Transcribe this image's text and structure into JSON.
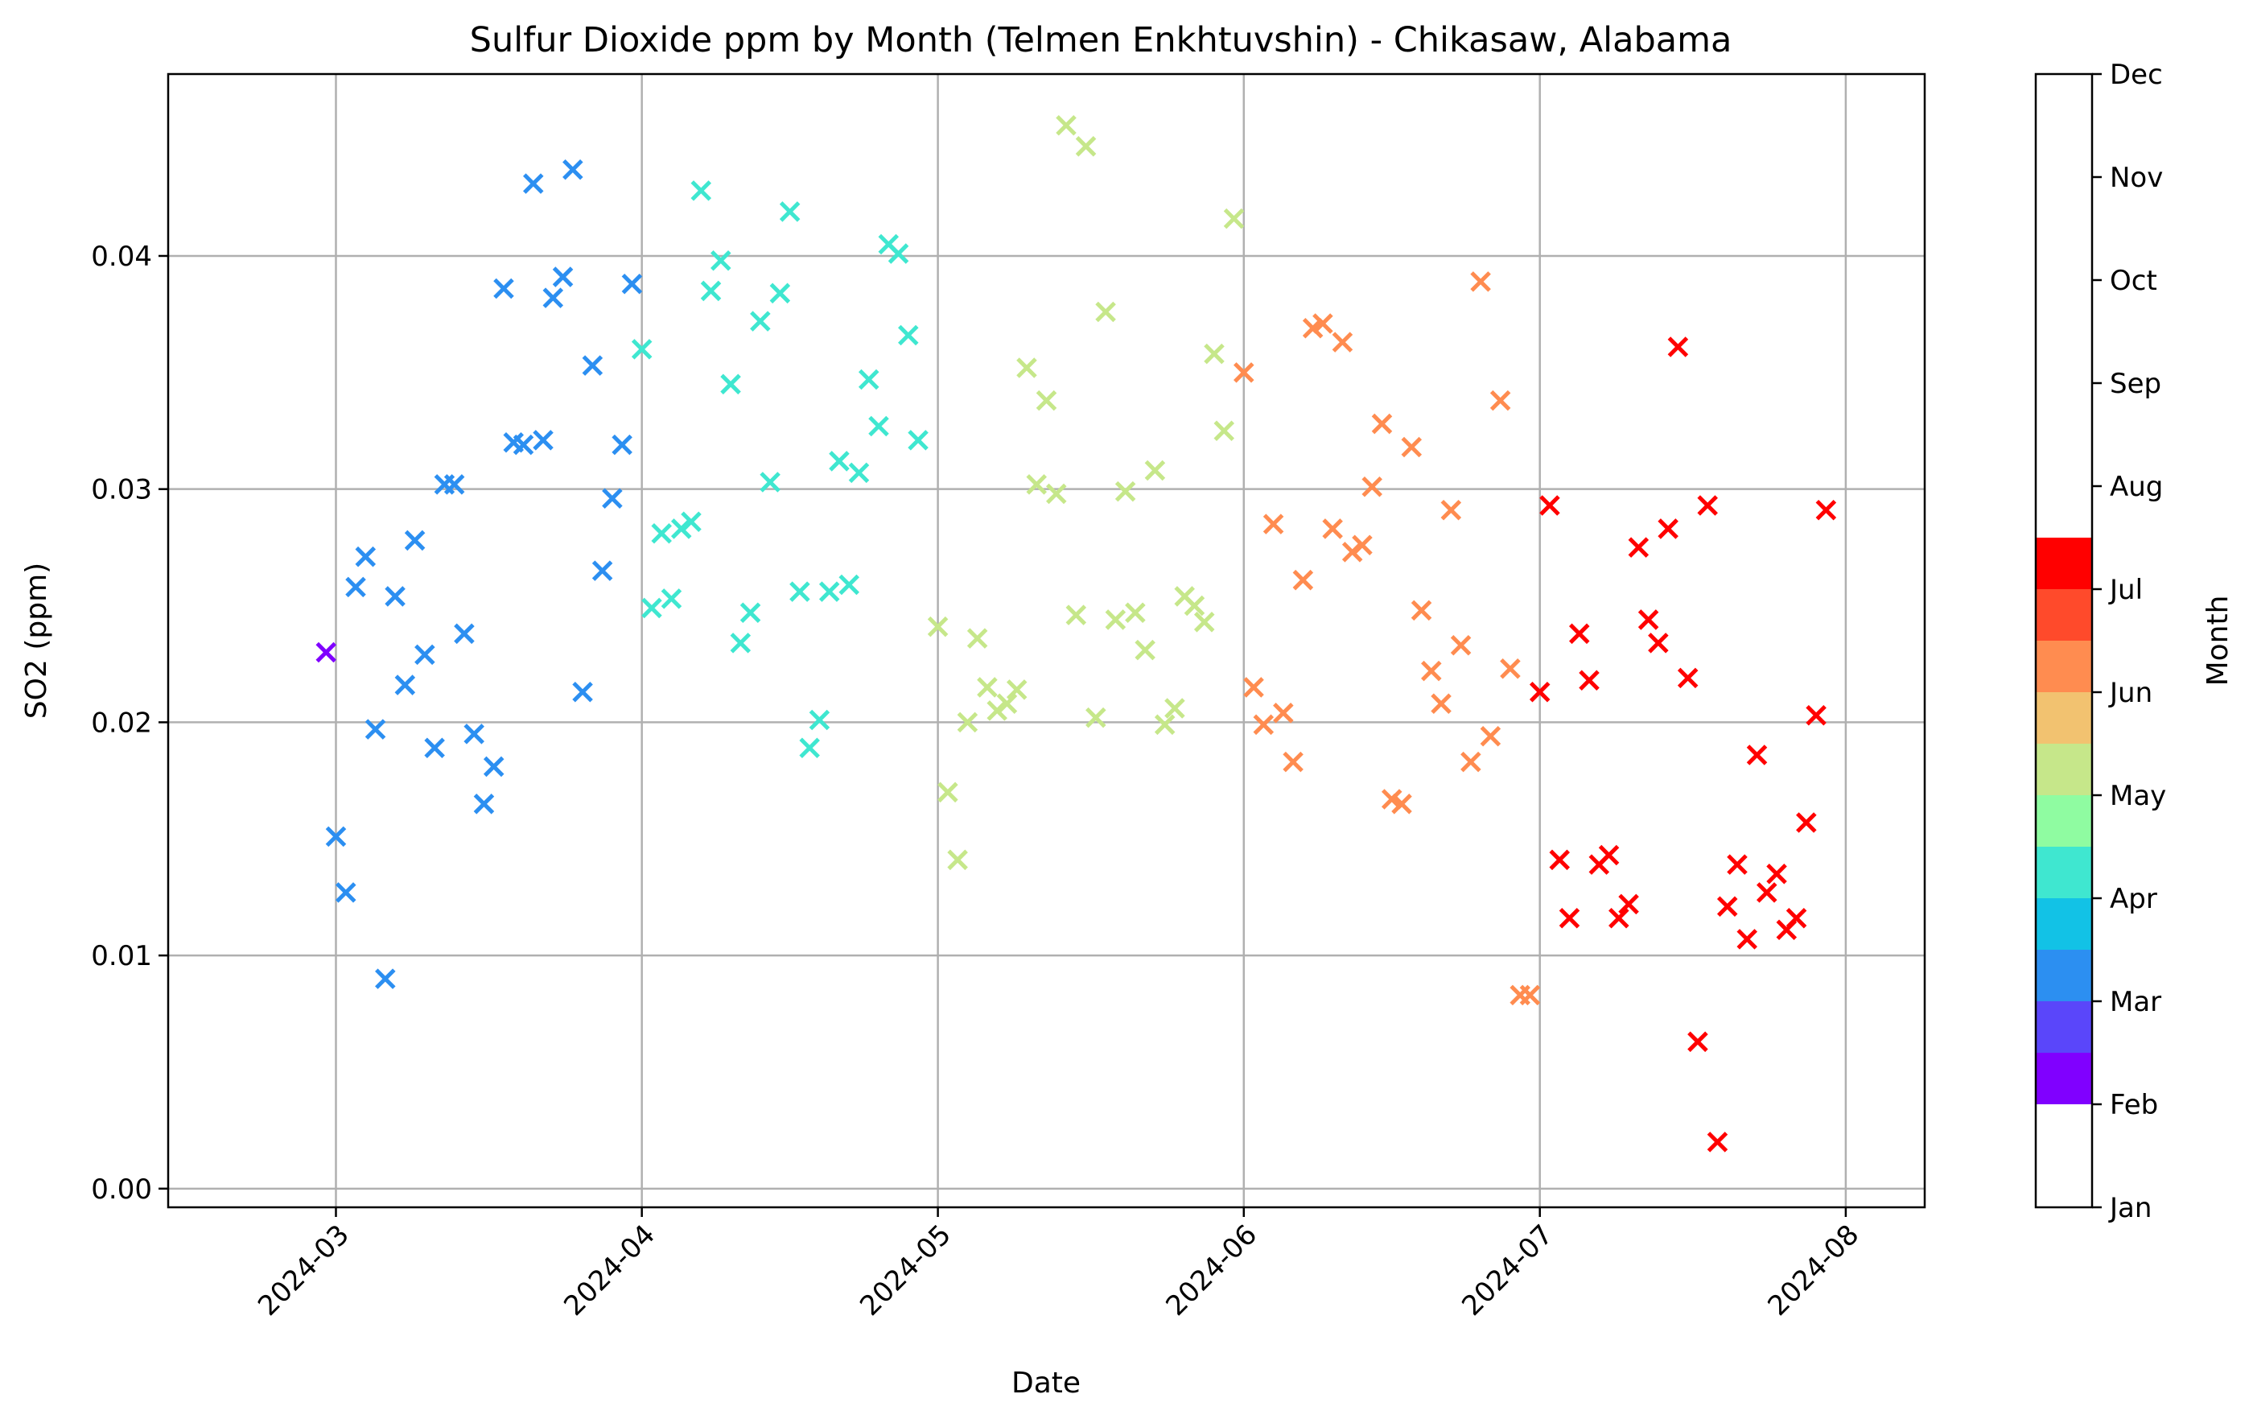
{
  "chart_data": {
    "type": "scatter",
    "title": "Sulfur Dioxide ppm by Month (Telmen Enkhtuvshin) - Chikasaw, Alabama",
    "xlabel": "Date",
    "ylabel": "SO2 (ppm)",
    "marker": "x",
    "xlim": [
      "2024-02-13",
      "2024-08-09"
    ],
    "ylim": [
      -0.0008,
      0.0478
    ],
    "x_ticks": [
      "2024-03-01",
      "2024-04-01",
      "2024-05-01",
      "2024-06-01",
      "2024-07-01",
      "2024-08-01"
    ],
    "x_tick_labels": [
      "2024-03",
      "2024-04",
      "2024-05",
      "2024-06",
      "2024-07",
      "2024-08"
    ],
    "y_ticks": [
      0.0,
      0.01,
      0.02,
      0.03,
      0.04
    ],
    "y_tick_labels": [
      "0.00",
      "0.01",
      "0.02",
      "0.03",
      "0.04"
    ],
    "grid": true,
    "colorbar": {
      "label": "Month",
      "range": [
        1,
        12
      ],
      "tick_labels": [
        "Jan",
        "Feb",
        "Mar",
        "Apr",
        "May",
        "Jun",
        "Jul",
        "Aug",
        "Sep",
        "Oct",
        "Nov",
        "Dec"
      ],
      "bands": [
        {
          "from": 2.0,
          "to": 2.5,
          "color": "#8000ff"
        },
        {
          "from": 2.5,
          "to": 3.0,
          "color": "#5a46fa"
        },
        {
          "from": 3.0,
          "to": 3.5,
          "color": "#2c8ff1"
        },
        {
          "from": 3.5,
          "to": 4.0,
          "color": "#12c2e6"
        },
        {
          "from": 4.0,
          "to": 4.5,
          "color": "#3fe7d0"
        },
        {
          "from": 4.5,
          "to": 5.0,
          "color": "#8ffca1"
        },
        {
          "from": 5.0,
          "to": 5.5,
          "color": "#c6e78a"
        },
        {
          "from": 5.5,
          "to": 6.0,
          "color": "#f2c270"
        },
        {
          "from": 6.0,
          "to": 6.5,
          "color": "#ff8c50"
        },
        {
          "from": 6.5,
          "to": 7.0,
          "color": "#ff4a2b"
        },
        {
          "from": 7.0,
          "to": 7.5,
          "color": "#ff0000"
        }
      ]
    },
    "series": [
      {
        "month": "Feb",
        "color": "#8000ff",
        "points": [
          [
            "2024-02-29",
            0.023
          ]
        ]
      },
      {
        "month": "Mar",
        "color": "#2c8ff1",
        "points": [
          [
            "2024-03-01",
            0.0151
          ],
          [
            "2024-03-02",
            0.0127
          ],
          [
            "2024-03-03",
            0.0258
          ],
          [
            "2024-03-04",
            0.0271
          ],
          [
            "2024-03-05",
            0.0197
          ],
          [
            "2024-03-06",
            0.009
          ],
          [
            "2024-03-07",
            0.0254
          ],
          [
            "2024-03-08",
            0.0216
          ],
          [
            "2024-03-09",
            0.0278
          ],
          [
            "2024-03-10",
            0.0229
          ],
          [
            "2024-03-11",
            0.0189
          ],
          [
            "2024-03-12",
            0.0302
          ],
          [
            "2024-03-13",
            0.0302
          ],
          [
            "2024-03-14",
            0.0238
          ],
          [
            "2024-03-15",
            0.0195
          ],
          [
            "2024-03-16",
            0.0165
          ],
          [
            "2024-03-17",
            0.0181
          ],
          [
            "2024-03-18",
            0.0386
          ],
          [
            "2024-03-19",
            0.032
          ],
          [
            "2024-03-20",
            0.0319
          ],
          [
            "2024-03-21",
            0.0431
          ],
          [
            "2024-03-22",
            0.0321
          ],
          [
            "2024-03-23",
            0.0382
          ],
          [
            "2024-03-24",
            0.0391
          ],
          [
            "2024-03-25",
            0.0437
          ],
          [
            "2024-03-26",
            0.0213
          ],
          [
            "2024-03-27",
            0.0353
          ],
          [
            "2024-03-28",
            0.0265
          ],
          [
            "2024-03-29",
            0.0296
          ],
          [
            "2024-03-30",
            0.0319
          ],
          [
            "2024-03-31",
            0.0388
          ]
        ]
      },
      {
        "month": "Apr",
        "color": "#3fe7d0",
        "points": [
          [
            "2024-04-01",
            0.036
          ],
          [
            "2024-04-02",
            0.0249
          ],
          [
            "2024-04-03",
            0.0281
          ],
          [
            "2024-04-04",
            0.0253
          ],
          [
            "2024-04-05",
            0.0283
          ],
          [
            "2024-04-06",
            0.0286
          ],
          [
            "2024-04-07",
            0.0428
          ],
          [
            "2024-04-08",
            0.0385
          ],
          [
            "2024-04-09",
            0.0398
          ],
          [
            "2024-04-10",
            0.0345
          ],
          [
            "2024-04-11",
            0.0234
          ],
          [
            "2024-04-12",
            0.0247
          ],
          [
            "2024-04-13",
            0.0372
          ],
          [
            "2024-04-14",
            0.0303
          ],
          [
            "2024-04-15",
            0.0384
          ],
          [
            "2024-04-16",
            0.0419
          ],
          [
            "2024-04-17",
            0.0256
          ],
          [
            "2024-04-18",
            0.0189
          ],
          [
            "2024-04-19",
            0.0201
          ],
          [
            "2024-04-20",
            0.0256
          ],
          [
            "2024-04-21",
            0.0312
          ],
          [
            "2024-04-22",
            0.0259
          ],
          [
            "2024-04-23",
            0.0307
          ],
          [
            "2024-04-24",
            0.0347
          ],
          [
            "2024-04-25",
            0.0327
          ],
          [
            "2024-04-26",
            0.0405
          ],
          [
            "2024-04-27",
            0.0401
          ],
          [
            "2024-04-28",
            0.0366
          ],
          [
            "2024-04-29",
            0.0321
          ]
        ]
      },
      {
        "month": "May",
        "color": "#c6e78a",
        "points": [
          [
            "2024-05-01",
            0.0241
          ],
          [
            "2024-05-02",
            0.017
          ],
          [
            "2024-05-03",
            0.0141
          ],
          [
            "2024-05-04",
            0.02
          ],
          [
            "2024-05-05",
            0.0236
          ],
          [
            "2024-05-06",
            0.0215
          ],
          [
            "2024-05-07",
            0.0205
          ],
          [
            "2024-05-08",
            0.0208
          ],
          [
            "2024-05-09",
            0.0214
          ],
          [
            "2024-05-10",
            0.0352
          ],
          [
            "2024-05-11",
            0.0302
          ],
          [
            "2024-05-12",
            0.0338
          ],
          [
            "2024-05-13",
            0.0298
          ],
          [
            "2024-05-14",
            0.0456
          ],
          [
            "2024-05-15",
            0.0246
          ],
          [
            "2024-05-16",
            0.0447
          ],
          [
            "2024-05-17",
            0.0202
          ],
          [
            "2024-05-18",
            0.0376
          ],
          [
            "2024-05-19",
            0.0244
          ],
          [
            "2024-05-20",
            0.0299
          ],
          [
            "2024-05-21",
            0.0247
          ],
          [
            "2024-05-22",
            0.0231
          ],
          [
            "2024-05-23",
            0.0308
          ],
          [
            "2024-05-24",
            0.0199
          ],
          [
            "2024-05-25",
            0.0206
          ],
          [
            "2024-05-26",
            0.0254
          ],
          [
            "2024-05-27",
            0.025
          ],
          [
            "2024-05-28",
            0.0243
          ],
          [
            "2024-05-29",
            0.0358
          ],
          [
            "2024-05-30",
            0.0325
          ],
          [
            "2024-05-31",
            0.0416
          ]
        ]
      },
      {
        "month": "Jun",
        "color": "#ff8c50",
        "points": [
          [
            "2024-06-01",
            0.035
          ],
          [
            "2024-06-02",
            0.0215
          ],
          [
            "2024-06-03",
            0.0199
          ],
          [
            "2024-06-04",
            0.0285
          ],
          [
            "2024-06-05",
            0.0204
          ],
          [
            "2024-06-06",
            0.0183
          ],
          [
            "2024-06-07",
            0.0261
          ],
          [
            "2024-06-08",
            0.0369
          ],
          [
            "2024-06-09",
            0.0371
          ],
          [
            "2024-06-10",
            0.0283
          ],
          [
            "2024-06-11",
            0.0363
          ],
          [
            "2024-06-12",
            0.0273
          ],
          [
            "2024-06-13",
            0.0276
          ],
          [
            "2024-06-14",
            0.0301
          ],
          [
            "2024-06-15",
            0.0328
          ],
          [
            "2024-06-16",
            0.0167
          ],
          [
            "2024-06-17",
            0.0165
          ],
          [
            "2024-06-18",
            0.0318
          ],
          [
            "2024-06-19",
            0.0248
          ],
          [
            "2024-06-20",
            0.0222
          ],
          [
            "2024-06-21",
            0.0208
          ],
          [
            "2024-06-22",
            0.0291
          ],
          [
            "2024-06-23",
            0.0233
          ],
          [
            "2024-06-24",
            0.0183
          ],
          [
            "2024-06-25",
            0.0389
          ],
          [
            "2024-06-26",
            0.0194
          ],
          [
            "2024-06-27",
            0.0338
          ],
          [
            "2024-06-28",
            0.0223
          ],
          [
            "2024-06-29",
            0.0083
          ],
          [
            "2024-06-30",
            0.0083
          ]
        ]
      },
      {
        "month": "Jul",
        "color": "#ff0000",
        "points": [
          [
            "2024-07-01",
            0.0213
          ],
          [
            "2024-07-02",
            0.0293
          ],
          [
            "2024-07-03",
            0.0141
          ],
          [
            "2024-07-04",
            0.0116
          ],
          [
            "2024-07-05",
            0.0238
          ],
          [
            "2024-07-06",
            0.0218
          ],
          [
            "2024-07-07",
            0.0139
          ],
          [
            "2024-07-08",
            0.0143
          ],
          [
            "2024-07-09",
            0.0116
          ],
          [
            "2024-07-10",
            0.0122
          ],
          [
            "2024-07-11",
            0.0275
          ],
          [
            "2024-07-12",
            0.0244
          ],
          [
            "2024-07-13",
            0.0234
          ],
          [
            "2024-07-14",
            0.0283
          ],
          [
            "2024-07-15",
            0.0361
          ],
          [
            "2024-07-16",
            0.0219
          ],
          [
            "2024-07-17",
            0.0063
          ],
          [
            "2024-07-18",
            0.0293
          ],
          [
            "2024-07-19",
            0.002
          ],
          [
            "2024-07-20",
            0.0121
          ],
          [
            "2024-07-21",
            0.0139
          ],
          [
            "2024-07-22",
            0.0107
          ],
          [
            "2024-07-23",
            0.0186
          ],
          [
            "2024-07-24",
            0.0127
          ],
          [
            "2024-07-25",
            0.0135
          ],
          [
            "2024-07-26",
            0.0111
          ],
          [
            "2024-07-27",
            0.0116
          ],
          [
            "2024-07-28",
            0.0157
          ],
          [
            "2024-07-29",
            0.0203
          ],
          [
            "2024-07-30",
            0.0291
          ]
        ]
      }
    ]
  }
}
